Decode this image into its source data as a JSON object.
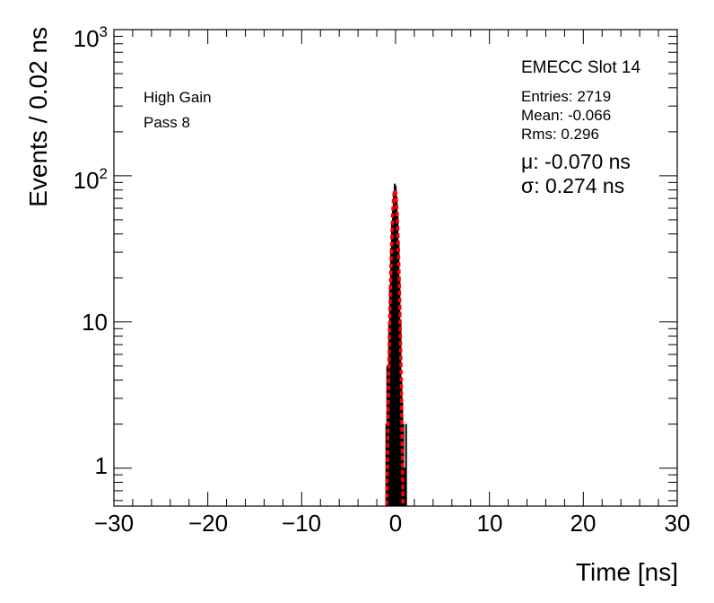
{
  "chart_data": {
    "type": "bar",
    "title": "",
    "xlabel": "Time [ns]",
    "ylabel": "Events / 0.02 ns",
    "xlim": [
      -30,
      30
    ],
    "ylim": [
      0.55,
      1000
    ],
    "yscale": "log",
    "grid": false,
    "x_ticks": [
      "−30",
      "−20",
      "−10",
      "0",
      "10",
      "20",
      "30"
    ],
    "y_ticks": [
      "1",
      "10",
      "10^2",
      "10^3"
    ],
    "histogram": {
      "name": "",
      "color": "#000000",
      "bins": [
        {
          "x": -1.0,
          "y": 2
        },
        {
          "x": -0.9,
          "y": 5
        },
        {
          "x": -0.8,
          "y": 5
        },
        {
          "x": -0.7,
          "y": 10
        },
        {
          "x": -0.6,
          "y": 18
        },
        {
          "x": -0.5,
          "y": 32
        },
        {
          "x": -0.4,
          "y": 48
        },
        {
          "x": -0.3,
          "y": 60
        },
        {
          "x": -0.2,
          "y": 78
        },
        {
          "x": -0.1,
          "y": 88
        },
        {
          "x": 0.0,
          "y": 85
        },
        {
          "x": 0.1,
          "y": 72
        },
        {
          "x": 0.2,
          "y": 55
        },
        {
          "x": 0.3,
          "y": 36
        },
        {
          "x": 0.4,
          "y": 20
        },
        {
          "x": 0.5,
          "y": 10
        },
        {
          "x": 0.6,
          "y": 4
        },
        {
          "x": 0.7,
          "y": 3
        },
        {
          "x": 0.8,
          "y": 2
        },
        {
          "x": 0.9,
          "y": 1
        },
        {
          "x": 1.0,
          "y": 1
        },
        {
          "x": 1.1,
          "y": 2
        }
      ]
    },
    "fit": {
      "type": "gaussian",
      "color": "#ff0000",
      "mean": -0.07,
      "sigma": 0.274,
      "peak": 80
    },
    "legend": {
      "title": "EMECC Slot 14",
      "entries": "Entries: 2719",
      "mean": "Mean: -0.066",
      "rms": "Rms: 0.296",
      "mu": "μ: -0.070 ns",
      "sigma": "σ: 0.274 ns"
    },
    "annotations": {
      "gain": "High Gain",
      "pass": "Pass 8"
    }
  }
}
